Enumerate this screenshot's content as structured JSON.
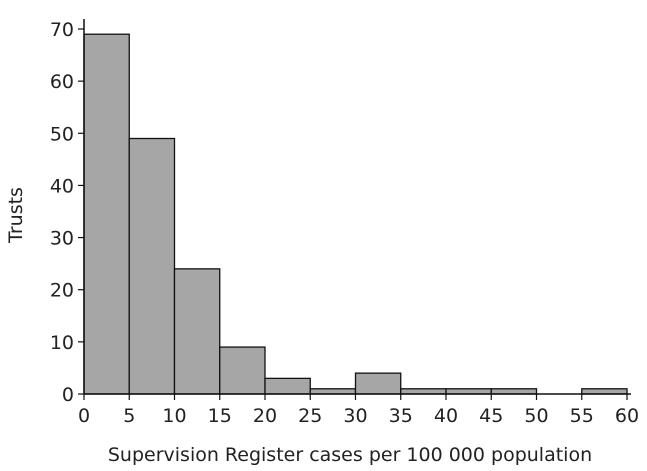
{
  "chart_data": {
    "type": "bar",
    "xlabel": "Supervision Register cases per 100 000 population",
    "ylabel": "Trusts",
    "xlim": [
      0,
      60
    ],
    "ylim": [
      0,
      70
    ],
    "x_ticks": [
      "0",
      "5",
      "10",
      "15",
      "20",
      "25",
      "30",
      "35",
      "40",
      "45",
      "50",
      "55",
      "60"
    ],
    "y_ticks": [
      "0",
      "10",
      "20",
      "30",
      "40",
      "50",
      "60",
      "70"
    ],
    "bin_width": 5,
    "bins": [
      {
        "from": 0,
        "to": 5,
        "value": 69
      },
      {
        "from": 5,
        "to": 10,
        "value": 49
      },
      {
        "from": 10,
        "to": 15,
        "value": 24
      },
      {
        "from": 15,
        "to": 20,
        "value": 9
      },
      {
        "from": 20,
        "to": 25,
        "value": 3
      },
      {
        "from": 25,
        "to": 30,
        "value": 1
      },
      {
        "from": 30,
        "to": 35,
        "value": 4
      },
      {
        "from": 35,
        "to": 40,
        "value": 1
      },
      {
        "from": 40,
        "to": 45,
        "value": 1
      },
      {
        "from": 45,
        "to": 50,
        "value": 1
      },
      {
        "from": 50,
        "to": 55,
        "value": 0
      },
      {
        "from": 55,
        "to": 60,
        "value": 1
      }
    ],
    "grid": false
  }
}
